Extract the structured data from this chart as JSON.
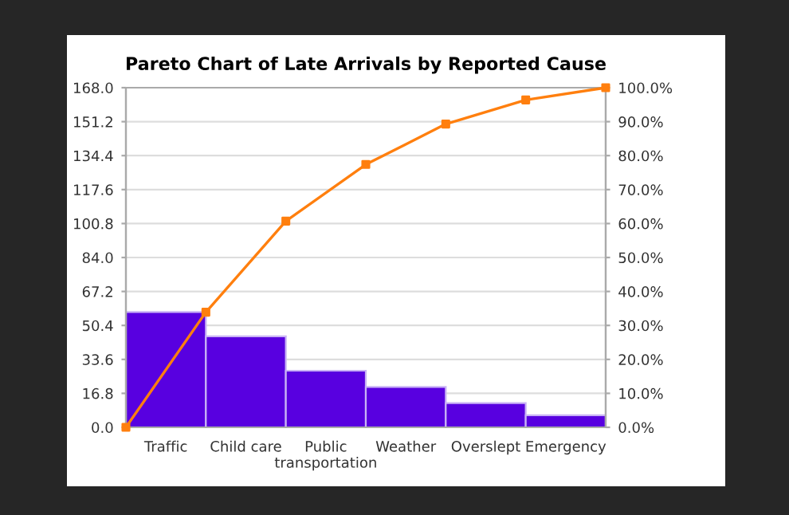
{
  "chart_data": {
    "type": "bar",
    "title": "Pareto Chart of Late Arrivals by Reported Cause",
    "categories": [
      null,
      "Traffic",
      null,
      "Child care",
      null,
      "Public\ntransportation",
      null,
      "Weather",
      null,
      "Overslept",
      null,
      "Emergency",
      null
    ],
    "series": [
      {
        "color": "#5800e0",
        "values": [
          null,
          57,
          null,
          45,
          null,
          28,
          null,
          20,
          null,
          12,
          null,
          6,
          null
        ]
      },
      {
        "type": "line",
        "axis": "y2",
        "color": "#ff7f0e",
        "values": [
          0,
          null,
          33.9,
          null,
          60.7,
          null,
          77.4,
          null,
          89.3,
          null,
          96.4,
          null,
          100
        ]
      }
    ],
    "ylim": [
      0,
      168
    ],
    "yticks": [
      {
        "value": 0,
        "label": "0.0"
      },
      {
        "value": 16.8,
        "label": "16.8"
      },
      {
        "value": 33.6,
        "label": "33.6"
      },
      {
        "value": 50.4,
        "label": "50.4"
      },
      {
        "value": 67.2,
        "label": "67.2"
      },
      {
        "value": 84,
        "label": "84.0"
      },
      {
        "value": 100.8,
        "label": "100.8"
      },
      {
        "value": 117.6,
        "label": "117.6"
      },
      {
        "value": 134.4,
        "label": "134.4"
      },
      {
        "value": 151.2,
        "label": "151.2"
      },
      {
        "value": 168,
        "label": "168.0"
      }
    ],
    "y2lim": [
      0,
      100
    ],
    "y2ticks": [
      {
        "value": 0,
        "label": "0.0%"
      },
      {
        "value": 10,
        "label": "10.0%"
      },
      {
        "value": 20,
        "label": "20.0%"
      },
      {
        "value": 30,
        "label": "30.0%"
      },
      {
        "value": 40,
        "label": "40.0%"
      },
      {
        "value": 50,
        "label": "50.0%"
      },
      {
        "value": 60,
        "label": "60.0%"
      },
      {
        "value": 70,
        "label": "70.0%"
      },
      {
        "value": 80,
        "label": "80.0%"
      },
      {
        "value": 90,
        "label": "90.0%"
      },
      {
        "value": 100,
        "label": "100.0%"
      }
    ],
    "grid": "y",
    "marker": "square",
    "line_style": "solid",
    "legend": false
  }
}
